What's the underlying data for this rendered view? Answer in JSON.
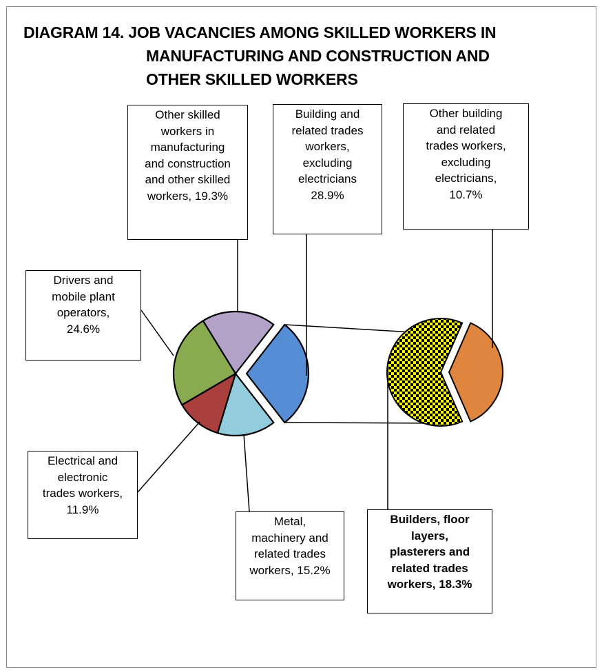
{
  "title": {
    "line1": "DIAGRAM 14. JOB VACANCIES AMONG SKILLED WORKERS IN",
    "line2": "MANUFACTURING  AND CONSTRUCTION AND",
    "line3": "OTHER SKILLED WORKERS"
  },
  "labels": {
    "other_skilled": "Other skilled\nworkers in\nmanufacturing\nand construction\nand other skilled\nworkers, 19.3%",
    "building_trades": "Building and\nrelated trades\nworkers,\nexcluding\nelectricians\n28.9%",
    "other_building": "Other building\nand related\ntrades workers,\nexcluding\nelectricians,\n10.7%",
    "drivers": "Drivers and\nmobile plant\noperators,\n24.6%",
    "electrical": "Electrical and\nelectronic\ntrades workers,\n11.9%",
    "metal": "Metal,\nmachinery and\nrelated trades\nworkers, 15.2%",
    "builders": "Builders, floor\nlayers,\nplasterers and\nrelated trades\nworkers, 18.3%"
  },
  "chart_data": {
    "type": "pie",
    "title": "DIAGRAM 14. JOB VACANCIES AMONG SKILLED WORKERS IN MANUFACTURING  AND CONSTRUCTION AND OTHER SKILLED WORKERS",
    "main_pie": [
      {
        "label": "Building and related trades workers, excluding electricians",
        "value": 28.9,
        "color": "#558ed5",
        "exploded": true
      },
      {
        "label": "Metal, machinery and related trades workers",
        "value": 15.2,
        "color": "#93cddd"
      },
      {
        "label": "Electrical and electronic trades workers",
        "value": 11.9,
        "color": "#a9403d"
      },
      {
        "label": "Drivers and mobile plant operators",
        "value": 24.6,
        "color": "#8aaa4f"
      },
      {
        "label": "Other skilled workers in manufacturing and construction and other skilled workers",
        "value": 19.3,
        "color": "#b3a2c7"
      }
    ],
    "secondary_pie": [
      {
        "label": "Builders, floor layers, plasterers and related trades workers",
        "value": 18.3,
        "color": "#ffff00",
        "pattern": "checkered"
      },
      {
        "label": "Other building and related trades workers, excluding electricians",
        "value": 10.7,
        "color": "#e0853e"
      }
    ],
    "legend": "none"
  }
}
